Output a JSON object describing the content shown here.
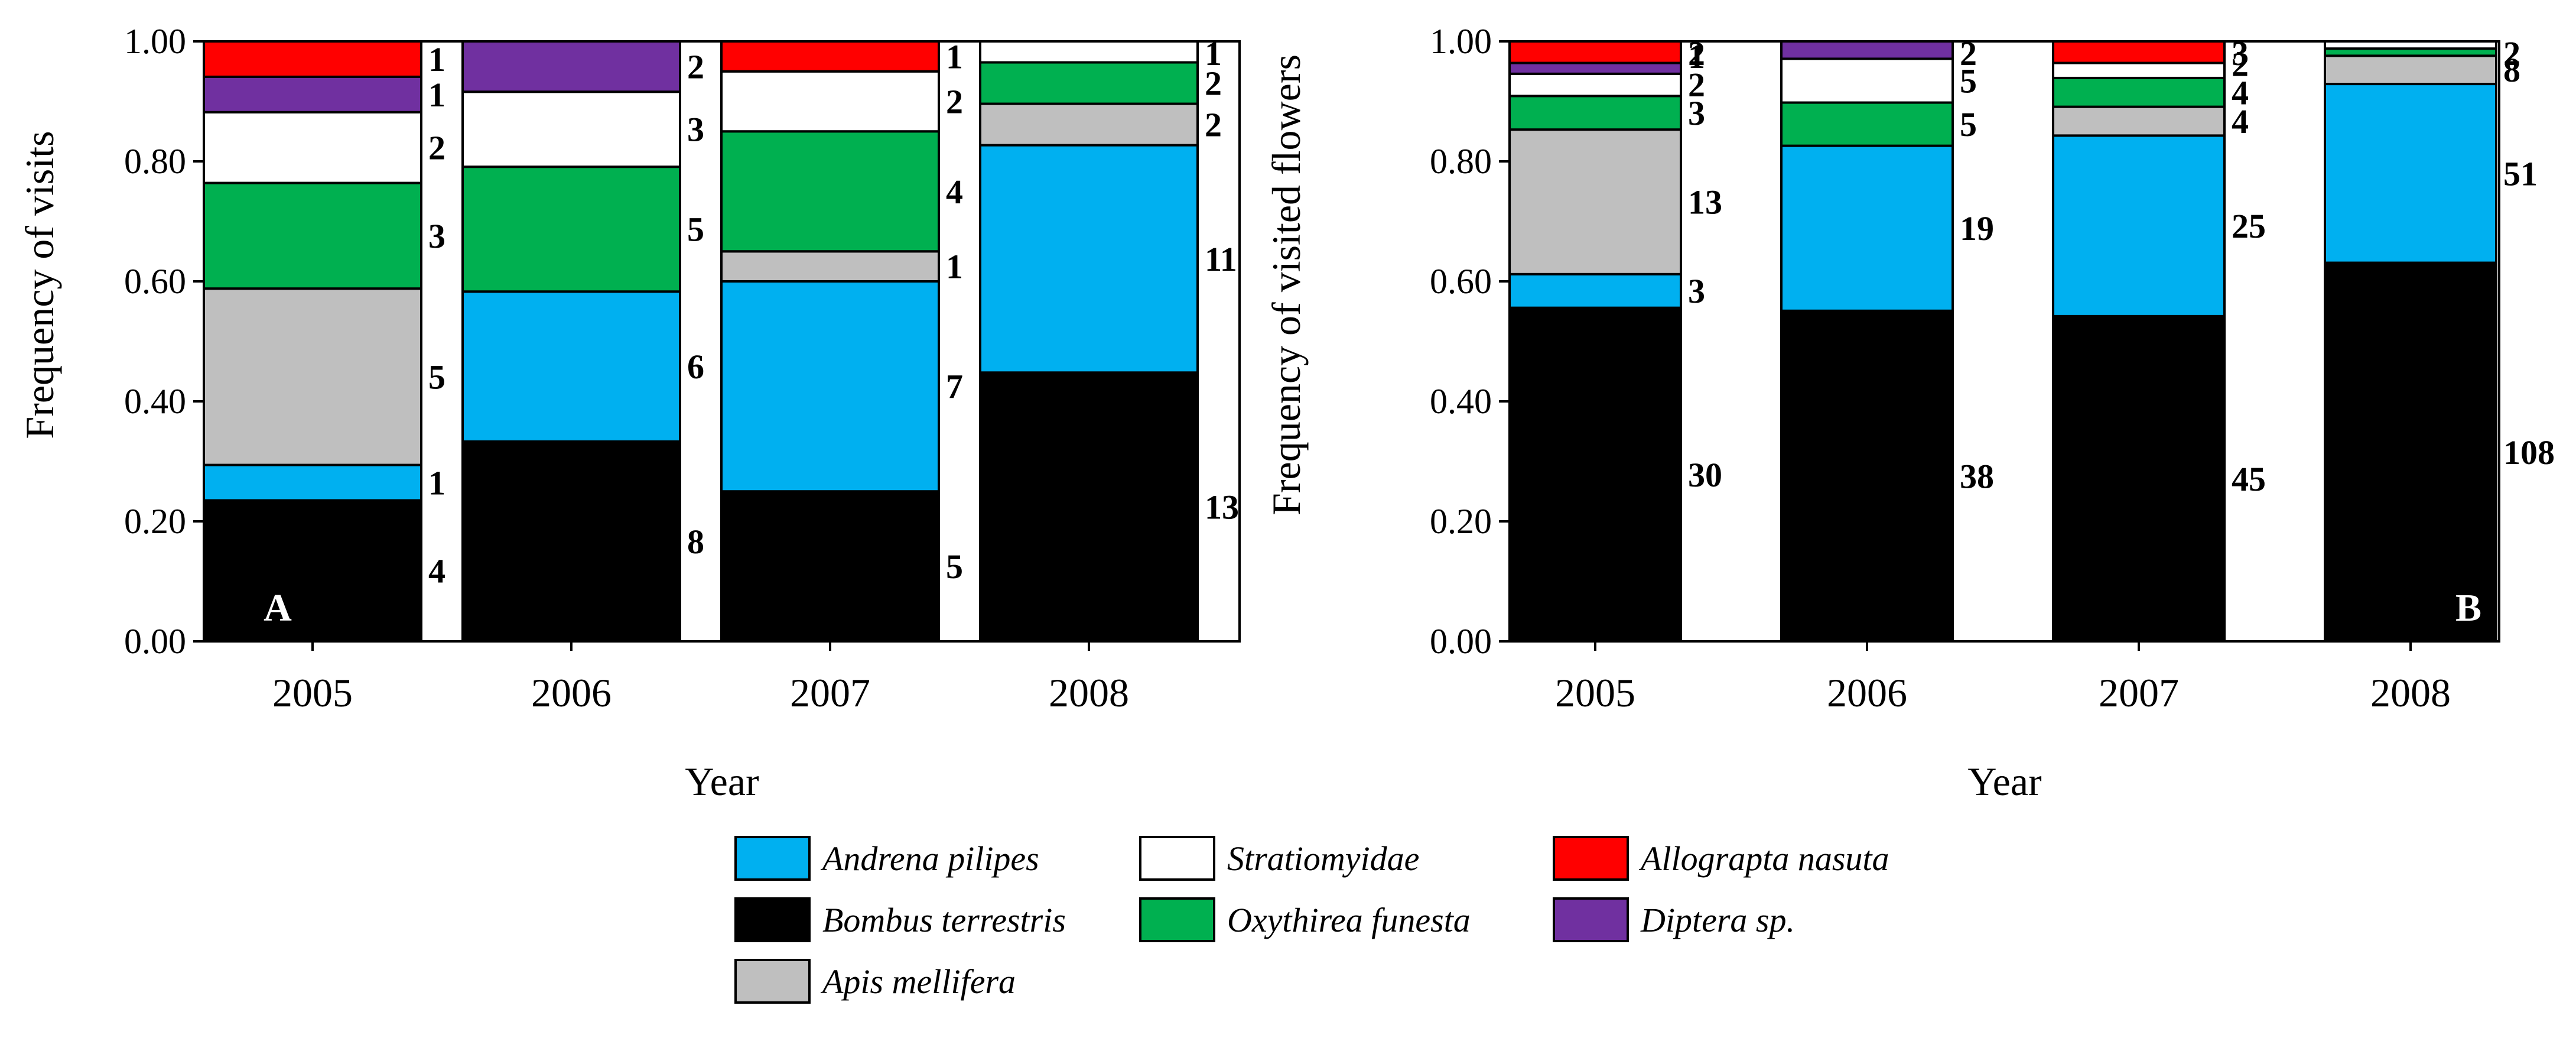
{
  "colors": {
    "Andrena pilipes": "#00b0f0",
    "Bombus terrestris": "#000000",
    "Stratiomyidae": "#ffffff",
    "Oxythirea funesta": "#00b050",
    "Apis mellifera": "#bfbfbf",
    "Allograpta nasuta": "#ff0000",
    "Diptera sp.": "#7030a0"
  },
  "legend": {
    "entries": [
      "Andrena pilipes",
      "Stratiomyidae",
      "Allograpta nasuta",
      "Bombus terrestris",
      "Oxythirea funesta",
      "Diptera sp.",
      "Apis mellifera"
    ]
  },
  "chart_data": [
    {
      "type": "bar",
      "stacked": true,
      "panel_letter": "A",
      "xlabel": "Year",
      "ylabel": "Frequency  of visits",
      "ylim": [
        0,
        1
      ],
      "yticks": [
        "0.00",
        "0.20",
        "0.40",
        "0.60",
        "0.80",
        "1.00"
      ],
      "categories": [
        "2005",
        "2006",
        "2007",
        "2008"
      ],
      "series": [
        {
          "name": "Bombus terrestris",
          "values": [
            0.235,
            0.333,
            0.25,
            0.448
          ],
          "labels": [
            "4",
            "8",
            "5",
            "13"
          ]
        },
        {
          "name": "Andrena pilipes",
          "values": [
            0.059,
            0.25,
            0.35,
            0.379
          ],
          "labels": [
            "1",
            "6",
            "7",
            "11"
          ]
        },
        {
          "name": "Apis mellifera",
          "values": [
            0.294,
            0.0,
            0.05,
            0.069
          ],
          "labels": [
            "5",
            "",
            "1",
            "2"
          ]
        },
        {
          "name": "Oxythirea funesta",
          "values": [
            0.176,
            0.208,
            0.2,
            0.069
          ],
          "labels": [
            "3",
            "5",
            "4",
            "2"
          ]
        },
        {
          "name": "Stratiomyidae",
          "values": [
            0.118,
            0.125,
            0.1,
            0.035
          ],
          "labels": [
            "2",
            "3",
            "2",
            "1"
          ]
        },
        {
          "name": "Diptera sp.",
          "values": [
            0.059,
            0.084,
            0.0,
            0.0
          ],
          "labels": [
            "1",
            "2",
            "",
            ""
          ]
        },
        {
          "name": "Allograpta nasuta",
          "values": [
            0.059,
            0.0,
            0.05,
            0.0
          ],
          "labels": [
            "1",
            "",
            "1",
            ""
          ]
        }
      ]
    },
    {
      "type": "bar",
      "stacked": true,
      "panel_letter": "B",
      "xlabel": "Year",
      "ylabel": "Frequency  of visited flowers",
      "ylim": [
        0,
        1
      ],
      "yticks": [
        "0.00",
        "0.20",
        "0.40",
        "0.60",
        "0.80",
        "1.00"
      ],
      "categories": [
        "2005",
        "2006",
        "2007",
        "2008"
      ],
      "series": [
        {
          "name": "Bombus terrestris",
          "values": [
            0.556,
            0.551,
            0.542,
            0.631
          ],
          "labels": [
            "30",
            "38",
            "45",
            "108"
          ]
        },
        {
          "name": "Andrena pilipes",
          "values": [
            0.056,
            0.275,
            0.301,
            0.298
          ],
          "labels": [
            "3",
            "19",
            "25",
            "51"
          ]
        },
        {
          "name": "Apis mellifera",
          "values": [
            0.241,
            0.0,
            0.048,
            0.047
          ],
          "labels": [
            "13",
            "",
            "4",
            "8"
          ]
        },
        {
          "name": "Oxythirea funesta",
          "values": [
            0.056,
            0.072,
            0.048,
            0.012
          ],
          "labels": [
            "3",
            "5",
            "4",
            "2"
          ]
        },
        {
          "name": "Stratiomyidae",
          "values": [
            0.037,
            0.073,
            0.025,
            0.012
          ],
          "labels": [
            "2",
            "5",
            "2",
            "2"
          ]
        },
        {
          "name": "Diptera sp.",
          "values": [
            0.018,
            0.029,
            0.0,
            0.0
          ],
          "labels": [
            "1",
            "2",
            "",
            ""
          ]
        },
        {
          "name": "Allograpta nasuta",
          "values": [
            0.036,
            0.0,
            0.036,
            0.0
          ],
          "labels": [
            "2",
            "",
            "3",
            ""
          ]
        }
      ]
    }
  ]
}
